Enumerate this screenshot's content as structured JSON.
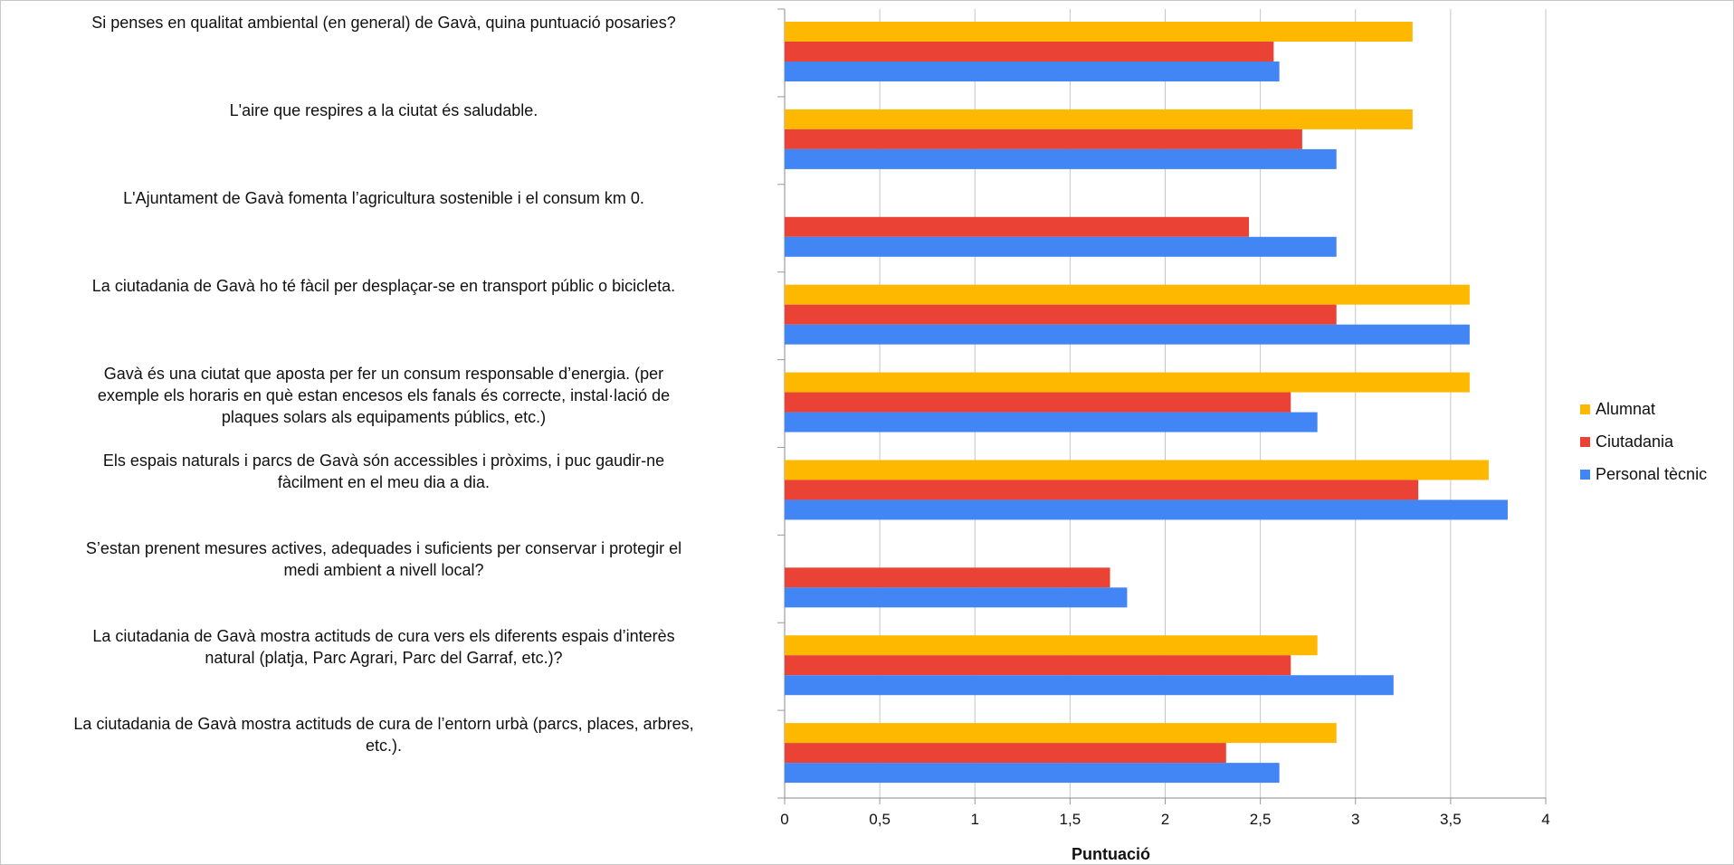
{
  "chart_data": {
    "type": "bar",
    "orientation": "horizontal",
    "xlabel": "Puntuació",
    "xlim": [
      0,
      4
    ],
    "x_ticks": [
      "0",
      "0,5",
      "1",
      "1,5",
      "2",
      "2,5",
      "3",
      "3,5",
      "4"
    ],
    "grid": "vertical",
    "legend_position": "right",
    "categories": [
      [
        "Si penses en qualitat ambiental (en general) de Gavà, quina puntuació posaries?"
      ],
      [
        "L'aire que respires a la ciutat és saludable."
      ],
      [
        "L'Ajuntament de  Gavà fomenta l’agricultura sostenible i el consum km 0."
      ],
      [
        "La ciutadania de Gavà ho té fàcil per desplaçar-se en transport públic o bicicleta."
      ],
      [
        "Gavà és una ciutat que aposta per fer un consum responsable d’energia. (per",
        "exemple els horaris en què estan encesos els fanals és correcte, instal·lació de",
        "plaques solars als equipaments públics, etc.)"
      ],
      [
        "Els espais naturals i parcs de Gavà són accessibles i pròxims, i puc gaudir-ne",
        "fàcilment en el meu dia a dia."
      ],
      [
        "S’estan prenent mesures actives, adequades i suficients per conservar i protegir el",
        "medi ambient a nivell local?"
      ],
      [
        "La ciutadania de Gavà mostra actituds de cura vers els diferents espais d’interès",
        "natural (platja, Parc Agrari, Parc del Garraf, etc.)?"
      ],
      [
        "La ciutadania de Gavà mostra actituds de cura de l’entorn urbà (parcs, places, arbres,",
        "etc.)."
      ]
    ],
    "series": [
      {
        "name": "Alumnat",
        "color": "#ffb800",
        "values": [
          3.3,
          3.3,
          null,
          3.6,
          3.6,
          3.7,
          null,
          2.8,
          2.9
        ]
      },
      {
        "name": "Ciutadania",
        "color": "#ea4335",
        "values": [
          2.57,
          2.72,
          2.44,
          2.9,
          2.66,
          3.33,
          1.71,
          2.66,
          2.32
        ]
      },
      {
        "name": "Personal tècnic",
        "color": "#4285f4",
        "values": [
          2.6,
          2.9,
          2.9,
          3.6,
          2.8,
          3.8,
          1.8,
          3.2,
          2.6
        ]
      }
    ]
  }
}
